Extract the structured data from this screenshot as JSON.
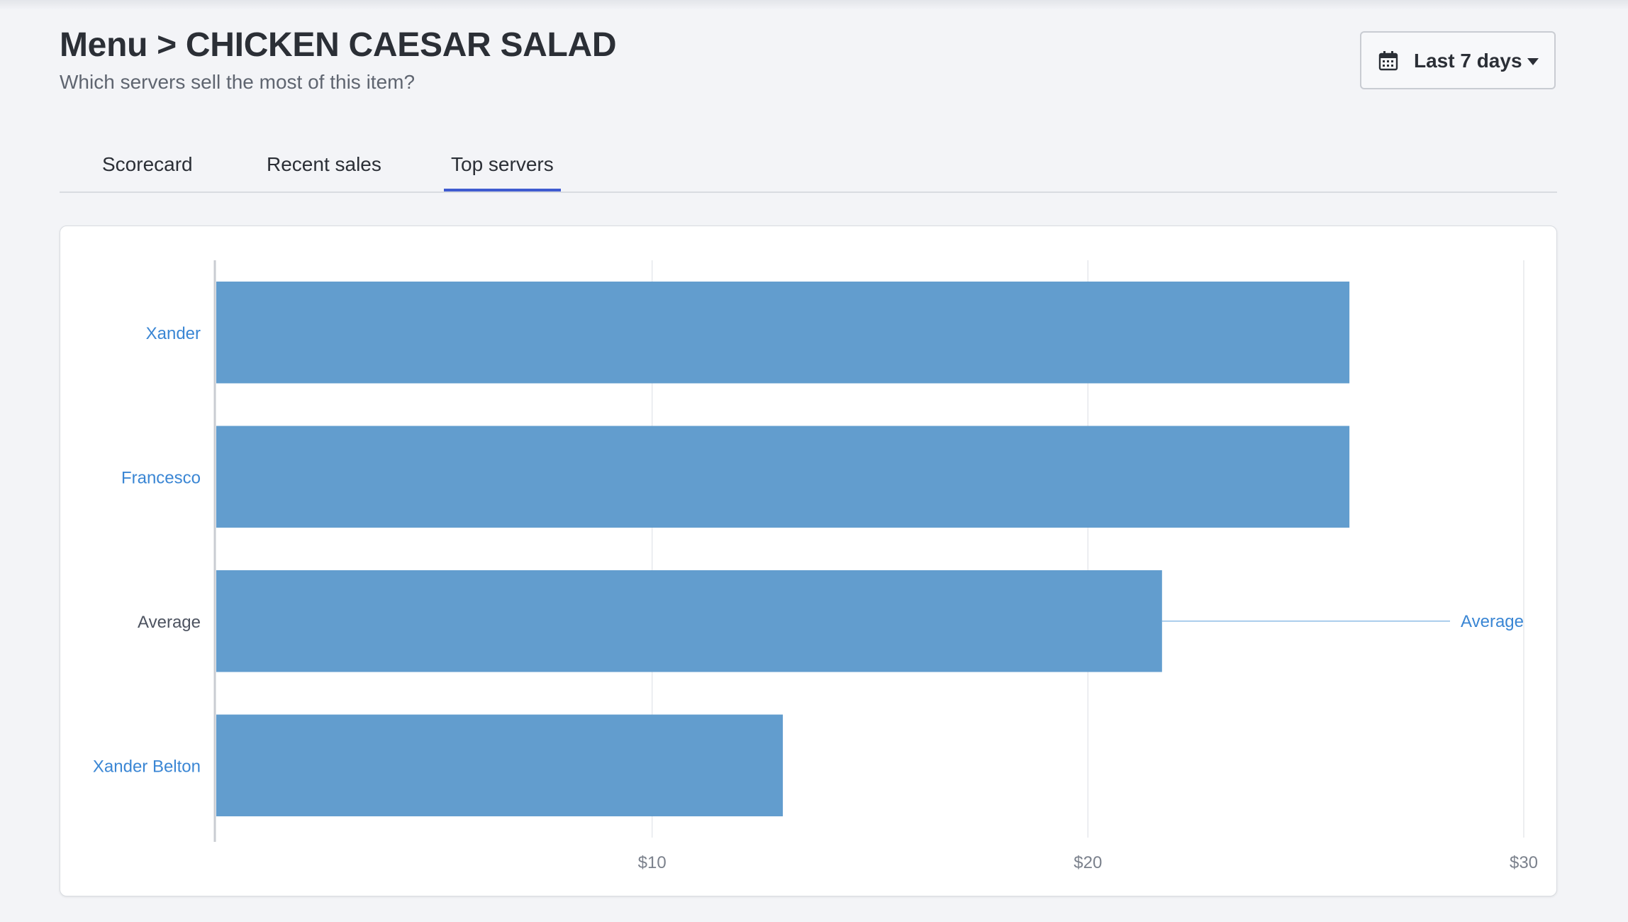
{
  "header": {
    "title": "Menu > CHICKEN CAESAR SALAD",
    "subtitle": "Which servers sell the most of this item?"
  },
  "date_filter": {
    "label": "Last 7 days",
    "icon": "calendar-icon",
    "caret_icon": "caret-down-icon"
  },
  "tabs": [
    {
      "label": "Scorecard",
      "active": false
    },
    {
      "label": "Recent sales",
      "active": false
    },
    {
      "label": "Top servers",
      "active": true
    }
  ],
  "colors": {
    "bar": "#629dce",
    "link": "#3a86d4",
    "average_label": "#4d5360",
    "tab_active": "#3f5bd0"
  },
  "chart_data": {
    "type": "bar",
    "orientation": "horizontal",
    "categories": [
      "Xander",
      "Francesco",
      "Average",
      "Xander Belton"
    ],
    "values": [
      26,
      26,
      21.7,
      13
    ],
    "category_is_link": [
      true,
      true,
      false,
      true
    ],
    "x_ticks": [
      10,
      20,
      30
    ],
    "x_tick_labels": [
      "$10",
      "$20",
      "$30"
    ],
    "xlim": [
      0,
      30
    ],
    "grid": true,
    "reference_line": {
      "category": "Average",
      "label": "Average"
    }
  }
}
